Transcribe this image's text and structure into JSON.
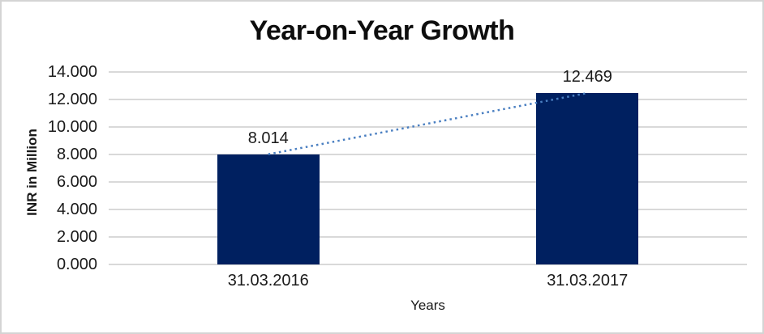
{
  "colors": {
    "bar": "#002060",
    "trendline": "#4a7fc1",
    "gridline": "#d9d9d9",
    "chart_border": "#d4d4d4",
    "background": "#ffffff",
    "text": "#1a1a1a"
  },
  "chart_data": {
    "type": "bar",
    "title": "Year-on-Year Growth",
    "xlabel": "Years",
    "ylabel": "INR in Million",
    "categories": [
      "31.03.2016",
      "31.03.2017"
    ],
    "values": [
      8014,
      12469
    ],
    "value_labels": [
      "8.014",
      "12.469"
    ],
    "ylim": [
      0,
      14000
    ],
    "y_ticks": [
      {
        "value": 0,
        "label": "0.000"
      },
      {
        "value": 2000,
        "label": "2.000"
      },
      {
        "value": 4000,
        "label": "4.000"
      },
      {
        "value": 6000,
        "label": "6.000"
      },
      {
        "value": 8000,
        "label": "8.000"
      },
      {
        "value": 10000,
        "label": "10.000"
      },
      {
        "value": 12000,
        "label": "12.000"
      },
      {
        "value": 14000,
        "label": "14.000"
      }
    ],
    "grid": "horizontal",
    "legend": "none",
    "annotations": {
      "trendline": {
        "style": "dotted",
        "connects": "bar-top-centers",
        "from": {
          "category": "31.03.2016",
          "value": 8014
        },
        "to": {
          "category": "31.03.2017",
          "value": 12469
        }
      }
    }
  }
}
